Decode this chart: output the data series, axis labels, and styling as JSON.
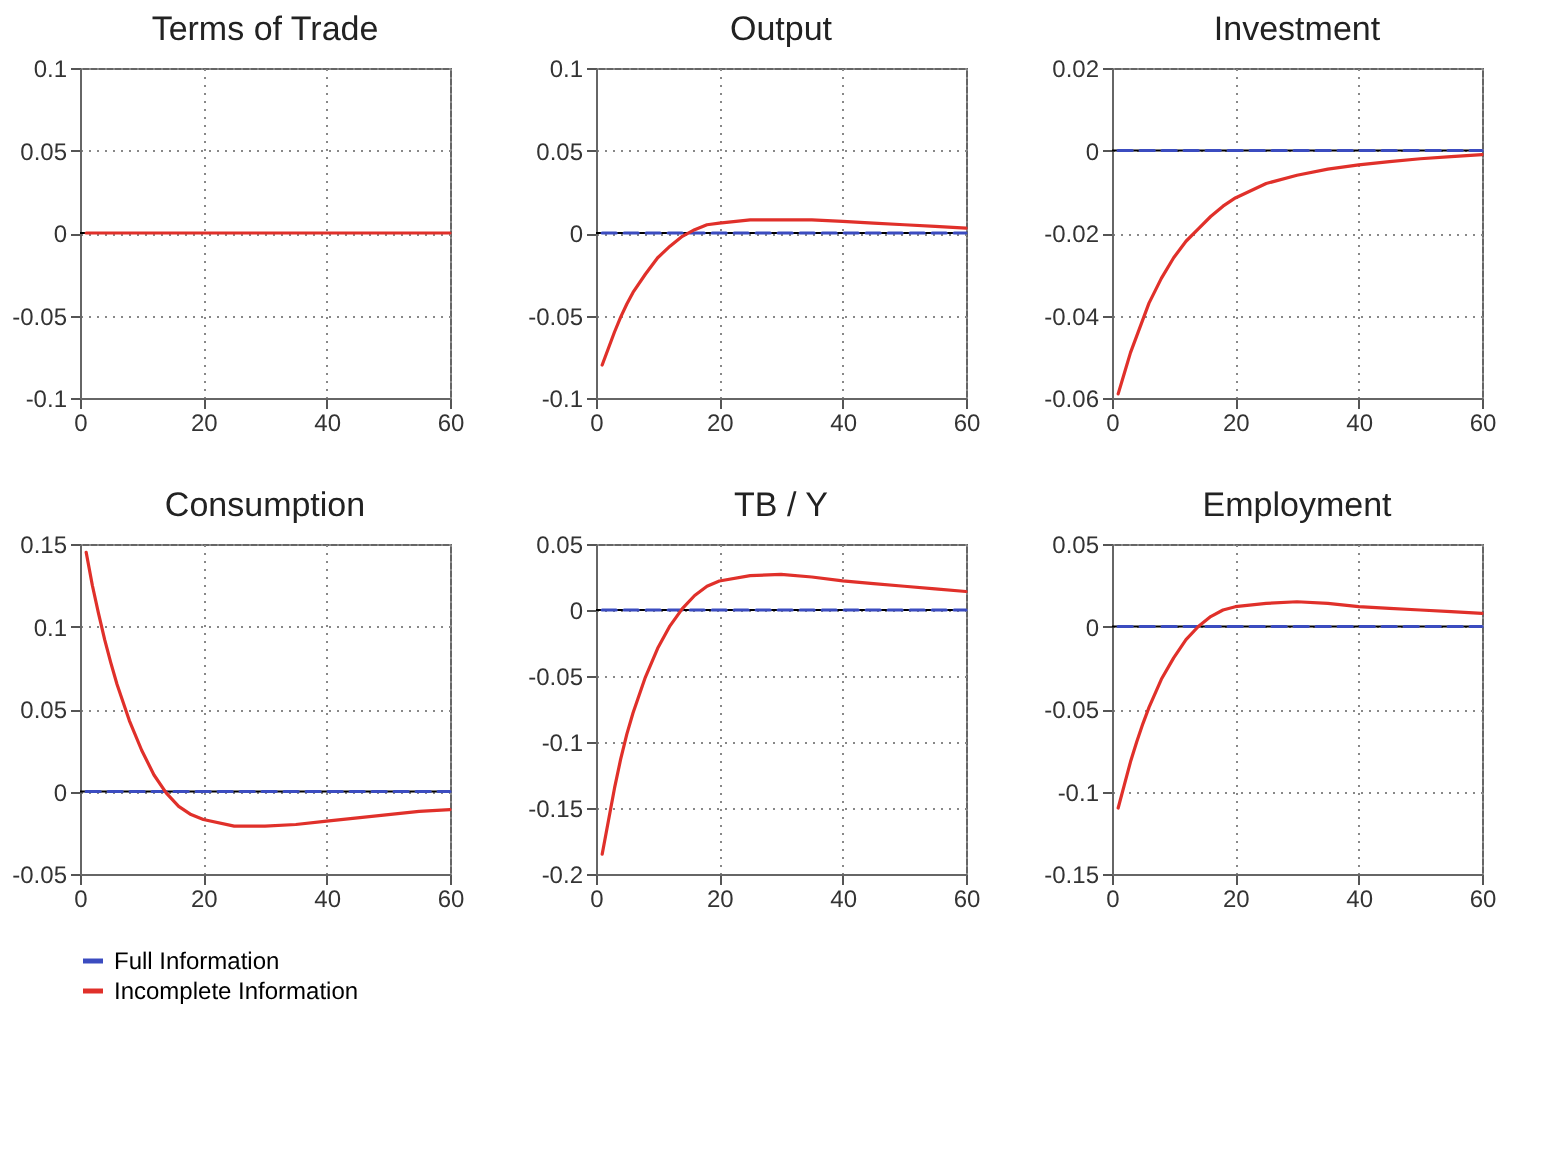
{
  "chart_data": [
    {
      "type": "line",
      "title": "Terms of Trade",
      "x": [
        1,
        2,
        3,
        4,
        5,
        6,
        8,
        10,
        12,
        14,
        16,
        18,
        20,
        25,
        30,
        35,
        40,
        45,
        50,
        55,
        60
      ],
      "xlim": [
        0,
        60
      ],
      "xticks": [
        0,
        20,
        40,
        60
      ],
      "ylim": [
        -0.1,
        0.1
      ],
      "yticks": [
        -0.1,
        -0.05,
        0,
        0.05,
        0.1
      ],
      "grid": true,
      "legend": false,
      "ref_lines": [
        {
          "axis": "y",
          "value": 0,
          "color": "#000000",
          "line_style": "solid"
        }
      ],
      "series": [
        {
          "color": "#e0302a",
          "line_style": "solid",
          "values": [
            0,
            0,
            0,
            0,
            0,
            0,
            0,
            0,
            0,
            0,
            0,
            0,
            0,
            0,
            0,
            0,
            0,
            0,
            0,
            0,
            0
          ]
        }
      ]
    },
    {
      "type": "line",
      "title": "Output",
      "x": [
        1,
        2,
        3,
        4,
        5,
        6,
        8,
        10,
        12,
        14,
        16,
        18,
        20,
        25,
        30,
        35,
        40,
        45,
        50,
        55,
        60
      ],
      "xlim": [
        0,
        60
      ],
      "xticks": [
        0,
        20,
        40,
        60
      ],
      "ylim": [
        -0.1,
        0.1
      ],
      "yticks": [
        -0.1,
        -0.05,
        0,
        0.05,
        0.1
      ],
      "grid": true,
      "legend": false,
      "ref_lines": [
        {
          "axis": "y",
          "value": 0,
          "color": "#000000",
          "line_style": "solid"
        }
      ],
      "series": [
        {
          "color": "#3b4cc0",
          "line_style": "dashed",
          "values": [
            0,
            0,
            0,
            0,
            0,
            0,
            0,
            0,
            0,
            0,
            0,
            0,
            0,
            0,
            0,
            0,
            0,
            0,
            0,
            0,
            0
          ]
        },
        {
          "color": "#e0302a",
          "line_style": "solid",
          "values": [
            -0.08,
            -0.07,
            -0.06,
            -0.051,
            -0.043,
            -0.036,
            -0.025,
            -0.015,
            -0.008,
            -0.002,
            0.002,
            0.005,
            0.006,
            0.008,
            0.008,
            0.008,
            0.007,
            0.006,
            0.005,
            0.004,
            0.003
          ]
        }
      ]
    },
    {
      "type": "line",
      "title": "Investment",
      "x": [
        1,
        2,
        3,
        4,
        5,
        6,
        8,
        10,
        12,
        14,
        16,
        18,
        20,
        25,
        30,
        35,
        40,
        45,
        50,
        55,
        60
      ],
      "xlim": [
        0,
        60
      ],
      "xticks": [
        0,
        20,
        40,
        60
      ],
      "ylim": [
        -0.06,
        0.02
      ],
      "yticks": [
        -0.06,
        -0.04,
        -0.02,
        0,
        0.02
      ],
      "grid": true,
      "legend": false,
      "ref_lines": [
        {
          "axis": "y",
          "value": 0,
          "color": "#000000",
          "line_style": "solid"
        }
      ],
      "series": [
        {
          "color": "#3b4cc0",
          "line_style": "dashed",
          "values": [
            0,
            0,
            0,
            0,
            0,
            0,
            0,
            0,
            0,
            0,
            0,
            0,
            0,
            0,
            0,
            0,
            0,
            0,
            0,
            0,
            0
          ]
        },
        {
          "color": "#e0302a",
          "line_style": "solid",
          "values": [
            -0.059,
            -0.054,
            -0.049,
            -0.045,
            -0.041,
            -0.037,
            -0.031,
            -0.026,
            -0.022,
            -0.019,
            -0.016,
            -0.0135,
            -0.0115,
            -0.008,
            -0.006,
            -0.0045,
            -0.0035,
            -0.0027,
            -0.002,
            -0.0015,
            -0.001
          ]
        }
      ]
    },
    {
      "type": "line",
      "title": "Consumption",
      "x": [
        1,
        2,
        3,
        4,
        5,
        6,
        8,
        10,
        12,
        14,
        16,
        18,
        20,
        25,
        30,
        35,
        40,
        45,
        50,
        55,
        60
      ],
      "xlim": [
        0,
        60
      ],
      "xticks": [
        0,
        20,
        40,
        60
      ],
      "ylim": [
        -0.05,
        0.15
      ],
      "yticks": [
        -0.05,
        0,
        0.05,
        0.1,
        0.15
      ],
      "grid": true,
      "legend": false,
      "ref_lines": [
        {
          "axis": "y",
          "value": 0,
          "color": "#000000",
          "line_style": "solid"
        }
      ],
      "series": [
        {
          "color": "#3b4cc0",
          "line_style": "dashed",
          "values": [
            0,
            0,
            0,
            0,
            0,
            0,
            0,
            0,
            0,
            0,
            0,
            0,
            0,
            0,
            0,
            0,
            0,
            0,
            0,
            0,
            0
          ]
        },
        {
          "color": "#e0302a",
          "line_style": "solid",
          "values": [
            0.145,
            0.125,
            0.108,
            0.092,
            0.078,
            0.065,
            0.043,
            0.025,
            0.01,
            -0.001,
            -0.009,
            -0.014,
            -0.017,
            -0.021,
            -0.021,
            -0.02,
            -0.018,
            -0.016,
            -0.014,
            -0.012,
            -0.011
          ]
        }
      ]
    },
    {
      "type": "line",
      "title": "TB / Y",
      "x": [
        1,
        2,
        3,
        4,
        5,
        6,
        8,
        10,
        12,
        14,
        16,
        18,
        20,
        25,
        30,
        35,
        40,
        45,
        50,
        55,
        60
      ],
      "xlim": [
        0,
        60
      ],
      "xticks": [
        0,
        20,
        40,
        60
      ],
      "ylim": [
        -0.2,
        0.05
      ],
      "yticks": [
        -0.2,
        -0.15,
        -0.1,
        -0.05,
        0,
        0.05
      ],
      "grid": true,
      "legend": false,
      "ref_lines": [
        {
          "axis": "y",
          "value": 0,
          "color": "#000000",
          "line_style": "solid"
        }
      ],
      "series": [
        {
          "color": "#3b4cc0",
          "line_style": "dashed",
          "values": [
            0,
            0,
            0,
            0,
            0,
            0,
            0,
            0,
            0,
            0,
            0,
            0,
            0,
            0,
            0,
            0,
            0,
            0,
            0,
            0,
            0
          ]
        },
        {
          "color": "#e0302a",
          "line_style": "solid",
          "values": [
            -0.185,
            -0.16,
            -0.135,
            -0.113,
            -0.094,
            -0.078,
            -0.051,
            -0.029,
            -0.012,
            0.001,
            0.011,
            0.018,
            0.022,
            0.026,
            0.027,
            0.025,
            0.022,
            0.02,
            0.018,
            0.016,
            0.014
          ]
        }
      ]
    },
    {
      "type": "line",
      "title": "Employment",
      "x": [
        1,
        2,
        3,
        4,
        5,
        6,
        8,
        10,
        12,
        14,
        16,
        18,
        20,
        25,
        30,
        35,
        40,
        45,
        50,
        55,
        60
      ],
      "xlim": [
        0,
        60
      ],
      "xticks": [
        0,
        20,
        40,
        60
      ],
      "ylim": [
        -0.15,
        0.05
      ],
      "yticks": [
        -0.15,
        -0.1,
        -0.05,
        0,
        0.05
      ],
      "grid": true,
      "legend": "bottom",
      "ref_lines": [
        {
          "axis": "y",
          "value": 0,
          "color": "#000000",
          "line_style": "solid"
        }
      ],
      "series": [
        {
          "name": "Full Information",
          "color": "#3b4cc0",
          "line_style": "dashed",
          "values": [
            0,
            0,
            0,
            0,
            0,
            0,
            0,
            0,
            0,
            0,
            0,
            0,
            0,
            0,
            0,
            0,
            0,
            0,
            0,
            0,
            0
          ]
        },
        {
          "name": "Incomplete Information",
          "color": "#e0302a",
          "line_style": "solid",
          "values": [
            -0.11,
            -0.096,
            -0.082,
            -0.07,
            -0.059,
            -0.049,
            -0.032,
            -0.019,
            -0.008,
            0,
            0.006,
            0.01,
            0.012,
            0.014,
            0.015,
            0.014,
            0.012,
            0.011,
            0.01,
            0.009,
            0.008
          ]
        }
      ]
    }
  ]
}
